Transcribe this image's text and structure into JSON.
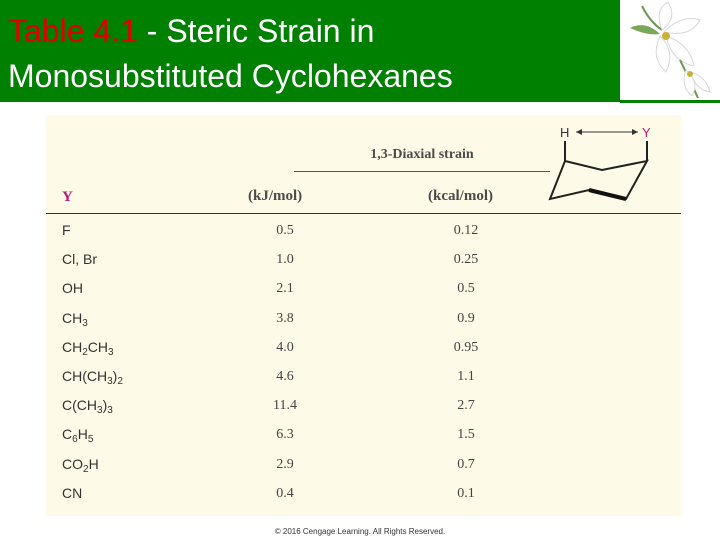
{
  "slide": {
    "title_highlight": "Table 4.1",
    "title_rest_line1": " - Steric Strain in",
    "title_line2": "Monosubstituted Cyclohexanes",
    "colors": {
      "title_bg": "#008000",
      "title_highlight": "#e00000",
      "panel_bg": "#fdfbe7",
      "y_header": "#c0186f"
    }
  },
  "table": {
    "group_header": "1,3-Diaxial strain",
    "col_y": "Y",
    "col_kj": "(kJ/mol)",
    "col_kcal": "(kcal/mol)",
    "diagram": {
      "label_h": "H",
      "label_y": "Y"
    },
    "rows": [
      {
        "kj": "0.5",
        "kcal": "0.12"
      },
      {
        "kj": "1.0",
        "kcal": "0.25"
      },
      {
        "kj": "2.1",
        "kcal": "0.5"
      },
      {
        "kj": "3.8",
        "kcal": "0.9"
      },
      {
        "kj": "4.0",
        "kcal": "0.95"
      },
      {
        "kj": "4.6",
        "kcal": "1.1"
      },
      {
        "kj": "11.4",
        "kcal": "2.7"
      },
      {
        "kj": "6.3",
        "kcal": "1.5"
      },
      {
        "kj": "2.9",
        "kcal": "0.7"
      },
      {
        "kj": "0.4",
        "kcal": "0.1"
      }
    ],
    "substituents": {
      "r0": "F",
      "r1": "Cl, Br",
      "r2": "OH",
      "r3_a": "CH",
      "r3_s1": "3",
      "r4_a": "CH",
      "r4_s1": "2",
      "r4_b": "CH",
      "r4_s2": "3",
      "r5_a": "CH(CH",
      "r5_s1": "3",
      "r5_b": ")",
      "r5_s2": "2",
      "r6_a": "C(CH",
      "r6_s1": "3",
      "r6_b": ")",
      "r6_s2": "3",
      "r7_a": "C",
      "r7_s1": "6",
      "r7_b": "H",
      "r7_s2": "5",
      "r8_a": "CO",
      "r8_s1": "2",
      "r8_b": "H",
      "r9": "CN"
    }
  },
  "footer": {
    "copyright": "© 2016 Cengage Learning. All Rights Reserved."
  }
}
